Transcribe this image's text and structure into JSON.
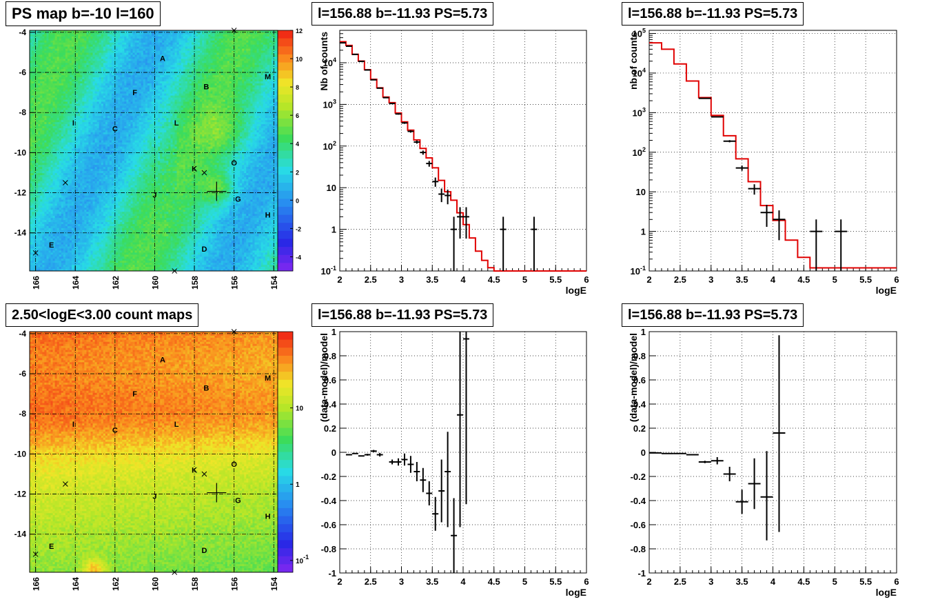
{
  "chart_data": [
    {
      "type": "heatmap",
      "title": "PS map b=-10 l=160",
      "x_ticks": [
        "166",
        "164",
        "162",
        "160",
        "158",
        "156",
        "154"
      ],
      "y_ticks": [
        "-4",
        "-6",
        "-8",
        "-10",
        "-12",
        "-14"
      ],
      "xlim": [
        166.3,
        153.8
      ],
      "ylim": [
        -15.9,
        -3.9
      ],
      "colorbar_ticks": [
        "12",
        "10",
        "8",
        "6",
        "4",
        "2",
        "0",
        "-2",
        "-4"
      ],
      "colorbar_range": [
        -5,
        12
      ],
      "background_level": 0.8,
      "sources": [
        {
          "label": "A",
          "l": 159.6,
          "b": -5.3
        },
        {
          "label": "B",
          "l": 157.4,
          "b": -6.7
        },
        {
          "label": "M",
          "l": 154.3,
          "b": -6.2
        },
        {
          "label": "F",
          "l": 161.0,
          "b": -7.0
        },
        {
          "label": "I",
          "l": 164.1,
          "b": -8.5
        },
        {
          "label": "C",
          "l": 162.0,
          "b": -8.8
        },
        {
          "label": "L",
          "l": 158.9,
          "b": -8.5
        },
        {
          "label": "K",
          "l": 158.0,
          "b": -10.8
        },
        {
          "label": "O",
          "l": 156.0,
          "b": -10.5
        },
        {
          "label": "J",
          "l": 160.0,
          "b": -12.1
        },
        {
          "label": "G",
          "l": 155.8,
          "b": -12.3
        },
        {
          "label": "H",
          "l": 154.3,
          "b": -13.1
        },
        {
          "label": "E",
          "l": 165.2,
          "b": -14.6
        },
        {
          "label": "D",
          "l": 157.5,
          "b": -14.8
        }
      ],
      "x_markers": [
        [
          156.0,
          -3.9
        ],
        [
          157.5,
          -11.0
        ],
        [
          164.5,
          -11.5
        ],
        [
          159.0,
          -15.9
        ],
        [
          166.0,
          -15.0
        ]
      ]
    },
    {
      "type": "line",
      "title": "l=156.88 b=-11.93 PS=5.73",
      "xlabel": "logE",
      "ylabel": "Nb of counts",
      "xlim": [
        2,
        6
      ],
      "ylim": [
        0.1,
        60000
      ],
      "log_y": true,
      "x_ticks": [
        "2",
        "2.5",
        "3",
        "3.5",
        "4",
        "4.5",
        "5",
        "5.5",
        "6"
      ],
      "y_ticks": [
        {
          "v": 0.1,
          "t": "10",
          "sup": "-1"
        },
        {
          "v": 1,
          "t": "1",
          "sup": ""
        },
        {
          "v": 10,
          "t": "10",
          "sup": ""
        },
        {
          "v": 100,
          "t": "10",
          "sup": "2"
        },
        {
          "v": 1000,
          "t": "10",
          "sup": "3"
        },
        {
          "v": 10000,
          "t": "10",
          "sup": "4"
        }
      ],
      "model": {
        "edges": [
          2.0,
          2.1,
          2.2,
          2.3,
          2.4,
          2.5,
          2.6,
          2.7,
          2.8,
          2.9,
          3.0,
          3.1,
          3.2,
          3.3,
          3.4,
          3.5,
          3.6,
          3.7,
          3.8,
          3.9,
          4.0,
          4.1,
          4.2,
          4.3,
          4.4,
          4.5,
          6.0
        ],
        "values": [
          32000,
          26000,
          16000,
          11000,
          6800,
          4000,
          2500,
          1500,
          1100,
          620,
          380,
          240,
          140,
          88,
          52,
          30,
          15,
          8,
          5,
          2.5,
          1.3,
          0.62,
          0.3,
          0.18,
          0.12,
          0.1
        ]
      },
      "data": [
        {
          "x": 2.05,
          "y": 30000,
          "xe": 0.05,
          "ylo": 29800,
          "yhi": 30200
        },
        {
          "x": 2.15,
          "y": 25000,
          "xe": 0.05,
          "ylo": 24800,
          "yhi": 25200
        },
        {
          "x": 2.25,
          "y": 15900,
          "xe": 0.05,
          "ylo": 15750,
          "yhi": 16050
        },
        {
          "x": 2.35,
          "y": 10800,
          "xe": 0.05,
          "ylo": 10650,
          "yhi": 10950
        },
        {
          "x": 2.45,
          "y": 6700,
          "xe": 0.05,
          "ylo": 6600,
          "yhi": 6800
        },
        {
          "x": 2.55,
          "y": 3900,
          "xe": 0.05,
          "ylo": 3830,
          "yhi": 3970
        },
        {
          "x": 2.65,
          "y": 2450,
          "xe": 0.05,
          "ylo": 2400,
          "yhi": 2500
        },
        {
          "x": 2.75,
          "y": 1450,
          "xe": 0.05,
          "ylo": 1410,
          "yhi": 1490
        },
        {
          "x": 2.85,
          "y": 1050,
          "xe": 0.05,
          "ylo": 1020,
          "yhi": 1080
        },
        {
          "x": 2.95,
          "y": 590,
          "xe": 0.05,
          "ylo": 565,
          "yhi": 615
        },
        {
          "x": 3.05,
          "y": 360,
          "xe": 0.05,
          "ylo": 341,
          "yhi": 379
        },
        {
          "x": 3.15,
          "y": 225,
          "xe": 0.05,
          "ylo": 210,
          "yhi": 240
        },
        {
          "x": 3.25,
          "y": 125,
          "xe": 0.05,
          "ylo": 114,
          "yhi": 136
        },
        {
          "x": 3.35,
          "y": 70,
          "xe": 0.05,
          "ylo": 62,
          "yhi": 78
        },
        {
          "x": 3.45,
          "y": 38,
          "xe": 0.05,
          "ylo": 32,
          "yhi": 44
        },
        {
          "x": 3.55,
          "y": 14,
          "xe": 0.05,
          "ylo": 10.5,
          "yhi": 17.5
        },
        {
          "x": 3.65,
          "y": 7,
          "xe": 0.05,
          "ylo": 4.5,
          "yhi": 9.5
        },
        {
          "x": 3.75,
          "y": 6.5,
          "xe": 0.05,
          "ylo": 4.0,
          "yhi": 9.0
        },
        {
          "x": 3.85,
          "y": 1,
          "xe": 0.05,
          "ylo": 0.1,
          "yhi": 2.0
        },
        {
          "x": 3.95,
          "y": 2,
          "xe": 0.05,
          "ylo": 0.6,
          "yhi": 3.4
        },
        {
          "x": 4.05,
          "y": 2,
          "xe": 0.05,
          "ylo": 0.6,
          "yhi": 3.4
        },
        {
          "x": 4.65,
          "y": 1,
          "xe": 0.05,
          "ylo": 0.1,
          "yhi": 2.0
        },
        {
          "x": 5.15,
          "y": 1,
          "xe": 0.05,
          "ylo": 0.1,
          "yhi": 2.0
        }
      ]
    },
    {
      "type": "line",
      "title": "l=156.88 b=-11.93 PS=5.73",
      "xlabel": "logE",
      "ylabel": "nb of counts",
      "xlim": [
        2,
        6
      ],
      "ylim": [
        0.1,
        120000
      ],
      "log_y": true,
      "x_ticks": [
        "2",
        "2.5",
        "3",
        "3.5",
        "4",
        "4.5",
        "5",
        "5.5",
        "6"
      ],
      "y_ticks": [
        {
          "v": 0.1,
          "t": "10",
          "sup": "-1"
        },
        {
          "v": 1,
          "t": "1",
          "sup": ""
        },
        {
          "v": 10,
          "t": "10",
          "sup": ""
        },
        {
          "v": 100,
          "t": "10",
          "sup": "2"
        },
        {
          "v": 1000,
          "t": "10",
          "sup": "3"
        },
        {
          "v": 10000,
          "t": "10",
          "sup": "4"
        },
        {
          "v": 100000,
          "t": "10",
          "sup": "5"
        }
      ],
      "model": {
        "edges": [
          2.0,
          2.2,
          2.4,
          2.6,
          2.8,
          3.0,
          3.2,
          3.4,
          3.6,
          3.8,
          4.0,
          4.2,
          4.4,
          4.6,
          6.0
        ],
        "values": [
          58000,
          40000,
          17000,
          6300,
          2400,
          850,
          260,
          68,
          18,
          4.5,
          1.9,
          0.6,
          0.22,
          0.12
        ]
      },
      "data": [
        {
          "x": 2.9,
          "y": 2300,
          "xe": 0.1,
          "ylo": 2250,
          "yhi": 2350
        },
        {
          "x": 3.1,
          "y": 780,
          "xe": 0.1,
          "ylo": 755,
          "yhi": 805
        },
        {
          "x": 3.3,
          "y": 190,
          "xe": 0.1,
          "ylo": 178,
          "yhi": 202
        },
        {
          "x": 3.5,
          "y": 40,
          "xe": 0.1,
          "ylo": 34,
          "yhi": 46
        },
        {
          "x": 3.7,
          "y": 12,
          "xe": 0.1,
          "ylo": 8.5,
          "yhi": 15.5
        },
        {
          "x": 3.9,
          "y": 3,
          "xe": 0.1,
          "ylo": 1.3,
          "yhi": 4.7
        },
        {
          "x": 4.1,
          "y": 2,
          "xe": 0.1,
          "ylo": 0.6,
          "yhi": 3.4
        },
        {
          "x": 4.7,
          "y": 1,
          "xe": 0.1,
          "ylo": 0.1,
          "yhi": 2.0
        },
        {
          "x": 5.1,
          "y": 1,
          "xe": 0.1,
          "ylo": 0.1,
          "yhi": 2.0
        }
      ]
    },
    {
      "type": "heatmap",
      "title": "2.50<logE<3.00 count maps",
      "x_ticks": [
        "166",
        "164",
        "162",
        "160",
        "158",
        "156",
        "154"
      ],
      "y_ticks": [
        "-4",
        "-6",
        "-8",
        "-10",
        "-12",
        "-14"
      ],
      "xlim": [
        166.3,
        153.8
      ],
      "ylim": [
        -15.9,
        -3.9
      ],
      "colorbar_ticks": [
        {
          "t": "10",
          "sup": "",
          "v": 10
        },
        {
          "t": "1",
          "sup": "",
          "v": 1
        },
        {
          "t": "10",
          "sup": "-1",
          "v": 0.1
        }
      ],
      "colorbar_log": true,
      "colorbar_range": [
        0.07,
        100
      ],
      "sources": [
        {
          "label": "A",
          "l": 159.6,
          "b": -5.3
        },
        {
          "label": "B",
          "l": 157.4,
          "b": -6.7
        },
        {
          "label": "M",
          "l": 154.3,
          "b": -6.2
        },
        {
          "label": "F",
          "l": 161.0,
          "b": -7.0
        },
        {
          "label": "I",
          "l": 164.1,
          "b": -8.5
        },
        {
          "label": "C",
          "l": 162.0,
          "b": -8.8
        },
        {
          "label": "L",
          "l": 158.9,
          "b": -8.5
        },
        {
          "label": "K",
          "l": 158.0,
          "b": -10.8
        },
        {
          "label": "O",
          "l": 156.0,
          "b": -10.5
        },
        {
          "label": "J",
          "l": 160.0,
          "b": -12.1
        },
        {
          "label": "G",
          "l": 155.8,
          "b": -12.3
        },
        {
          "label": "H",
          "l": 154.3,
          "b": -13.1
        },
        {
          "label": "E",
          "l": 165.2,
          "b": -14.6
        },
        {
          "label": "D",
          "l": 157.5,
          "b": -14.8
        }
      ],
      "x_markers": [
        [
          156.0,
          -3.9
        ],
        [
          157.5,
          -11.0
        ],
        [
          164.5,
          -11.5
        ],
        [
          159.0,
          -15.9
        ],
        [
          166.0,
          -15.0
        ]
      ]
    },
    {
      "type": "scatter",
      "title": "l=156.88 b=-11.93 PS=5.73",
      "xlabel": "logE",
      "ylabel": "(data-model)/model",
      "xlim": [
        2,
        6
      ],
      "ylim": [
        -1,
        1
      ],
      "x_ticks": [
        "2",
        "2.5",
        "3",
        "3.5",
        "4",
        "4.5",
        "5",
        "5.5",
        "6"
      ],
      "y_ticks": [
        "-1",
        "-0.8",
        "-0.6",
        "-0.4",
        "-0.2",
        "0",
        "0.2",
        "0.4",
        "0.6",
        "0.8",
        "1"
      ],
      "data": [
        {
          "x": 2.15,
          "y": -0.02,
          "xe": 0.05,
          "ylo": -0.025,
          "yhi": -0.015
        },
        {
          "x": 2.25,
          "y": -0.01,
          "xe": 0.05,
          "ylo": -0.015,
          "yhi": -0.005
        },
        {
          "x": 2.35,
          "y": -0.03,
          "xe": 0.05,
          "ylo": -0.035,
          "yhi": -0.025
        },
        {
          "x": 2.45,
          "y": -0.02,
          "xe": 0.05,
          "ylo": -0.028,
          "yhi": -0.012
        },
        {
          "x": 2.55,
          "y": 0.01,
          "xe": 0.05,
          "ylo": 0.0,
          "yhi": 0.02
        },
        {
          "x": 2.65,
          "y": -0.02,
          "xe": 0.05,
          "ylo": -0.035,
          "yhi": -0.005
        },
        {
          "x": 2.85,
          "y": -0.08,
          "xe": 0.05,
          "ylo": -0.1,
          "yhi": -0.06
        },
        {
          "x": 2.95,
          "y": -0.08,
          "xe": 0.05,
          "ylo": -0.11,
          "yhi": -0.05
        },
        {
          "x": 3.05,
          "y": -0.06,
          "xe": 0.05,
          "ylo": -0.11,
          "yhi": -0.01
        },
        {
          "x": 3.15,
          "y": -0.1,
          "xe": 0.05,
          "ylo": -0.17,
          "yhi": -0.03
        },
        {
          "x": 3.25,
          "y": -0.16,
          "xe": 0.05,
          "ylo": -0.24,
          "yhi": -0.08
        },
        {
          "x": 3.35,
          "y": -0.23,
          "xe": 0.05,
          "ylo": -0.33,
          "yhi": -0.13
        },
        {
          "x": 3.45,
          "y": -0.34,
          "xe": 0.05,
          "ylo": -0.44,
          "yhi": -0.24
        },
        {
          "x": 3.55,
          "y": -0.51,
          "xe": 0.05,
          "ylo": -0.65,
          "yhi": -0.37
        },
        {
          "x": 3.65,
          "y": -0.32,
          "xe": 0.05,
          "ylo": -0.58,
          "yhi": -0.06
        },
        {
          "x": 3.75,
          "y": -0.16,
          "xe": 0.05,
          "ylo": -0.62,
          "yhi": 0.17
        },
        {
          "x": 3.85,
          "y": -0.69,
          "xe": 0.05,
          "ylo": -1.0,
          "yhi": -0.38
        },
        {
          "x": 3.95,
          "y": 0.31,
          "xe": 0.05,
          "ylo": -0.62,
          "yhi": 1.0
        },
        {
          "x": 4.05,
          "y": 0.94,
          "xe": 0.05,
          "ylo": -0.43,
          "yhi": 1.0
        }
      ]
    },
    {
      "type": "scatter",
      "title": "l=156.88 b=-11.93 PS=5.73",
      "xlabel": "logE",
      "ylabel": "(data-model)/model",
      "xlim": [
        2,
        6
      ],
      "ylim": [
        -1,
        1
      ],
      "x_ticks": [
        "2",
        "2.5",
        "3",
        "3.5",
        "4",
        "4.5",
        "5",
        "5.5",
        "6"
      ],
      "y_ticks": [
        "-1",
        "-0.8",
        "-0.6",
        "-0.4",
        "-0.2",
        "0",
        "0.2",
        "0.4",
        "0.6",
        "0.8",
        "1"
      ],
      "data": [
        {
          "x": 2.1,
          "y": -0.005,
          "xe": 0.1,
          "ylo": -0.008,
          "yhi": -0.002
        },
        {
          "x": 2.3,
          "y": -0.01,
          "xe": 0.1,
          "ylo": -0.013,
          "yhi": -0.007
        },
        {
          "x": 2.5,
          "y": -0.01,
          "xe": 0.1,
          "ylo": -0.013,
          "yhi": -0.007
        },
        {
          "x": 2.7,
          "y": -0.02,
          "xe": 0.1,
          "ylo": -0.025,
          "yhi": -0.015
        },
        {
          "x": 2.9,
          "y": -0.08,
          "xe": 0.1,
          "ylo": -0.09,
          "yhi": -0.07
        },
        {
          "x": 3.1,
          "y": -0.07,
          "xe": 0.1,
          "ylo": -0.1,
          "yhi": -0.04
        },
        {
          "x": 3.3,
          "y": -0.18,
          "xe": 0.1,
          "ylo": -0.24,
          "yhi": -0.12
        },
        {
          "x": 3.5,
          "y": -0.41,
          "xe": 0.1,
          "ylo": -0.51,
          "yhi": -0.31
        },
        {
          "x": 3.7,
          "y": -0.26,
          "xe": 0.1,
          "ylo": -0.47,
          "yhi": -0.05
        },
        {
          "x": 3.9,
          "y": -0.37,
          "xe": 0.1,
          "ylo": -0.73,
          "yhi": 0.01
        },
        {
          "x": 4.1,
          "y": 0.16,
          "xe": 0.1,
          "ylo": -0.66,
          "yhi": 0.97
        }
      ]
    }
  ]
}
